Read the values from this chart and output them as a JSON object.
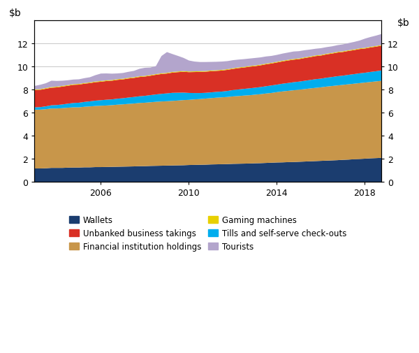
{
  "ylim": [
    0,
    14
  ],
  "yticks": [
    0,
    2,
    4,
    6,
    8,
    10,
    12
  ],
  "colors": {
    "wallets": "#1b3d6f",
    "financial": "#c8964a",
    "tills": "#00adee",
    "unbanked": "#d93025",
    "gaming": "#e8d000",
    "tourists": "#b3a5cc"
  },
  "legend": [
    {
      "label": "Wallets",
      "color": "#1b3d6f"
    },
    {
      "label": "Unbanked business takings",
      "color": "#d93025"
    },
    {
      "label": "Financial institution holdings",
      "color": "#c8964a"
    },
    {
      "label": "Gaming machines",
      "color": "#e8d000"
    },
    {
      "label": "Tills and self-serve check-outs",
      "color": "#00adee"
    },
    {
      "label": "Tourists",
      "color": "#b3a5cc"
    }
  ],
  "dates": [
    2003.0,
    2003.25,
    2003.5,
    2003.75,
    2004.0,
    2004.25,
    2004.5,
    2004.75,
    2005.0,
    2005.25,
    2005.5,
    2005.75,
    2006.0,
    2006.25,
    2006.5,
    2006.75,
    2007.0,
    2007.25,
    2007.5,
    2007.75,
    2008.0,
    2008.25,
    2008.5,
    2008.75,
    2009.0,
    2009.25,
    2009.5,
    2009.75,
    2010.0,
    2010.25,
    2010.5,
    2010.75,
    2011.0,
    2011.25,
    2011.5,
    2011.75,
    2012.0,
    2012.25,
    2012.5,
    2012.75,
    2013.0,
    2013.25,
    2013.5,
    2013.75,
    2014.0,
    2014.25,
    2014.5,
    2014.75,
    2015.0,
    2015.25,
    2015.5,
    2015.75,
    2016.0,
    2016.25,
    2016.5,
    2016.75,
    2017.0,
    2017.25,
    2017.5,
    2017.75,
    2018.0,
    2018.25,
    2018.5,
    2018.75
  ],
  "wallets": [
    1.2,
    1.2,
    1.22,
    1.25,
    1.25,
    1.25,
    1.27,
    1.28,
    1.28,
    1.3,
    1.3,
    1.32,
    1.32,
    1.33,
    1.34,
    1.35,
    1.36,
    1.37,
    1.38,
    1.4,
    1.4,
    1.42,
    1.43,
    1.44,
    1.45,
    1.46,
    1.47,
    1.48,
    1.5,
    1.51,
    1.52,
    1.53,
    1.55,
    1.56,
    1.57,
    1.58,
    1.6,
    1.61,
    1.62,
    1.63,
    1.65,
    1.66,
    1.68,
    1.7,
    1.72,
    1.73,
    1.75,
    1.76,
    1.78,
    1.8,
    1.82,
    1.84,
    1.86,
    1.88,
    1.9,
    1.92,
    1.95,
    1.97,
    2.0,
    2.02,
    2.05,
    2.08,
    2.1,
    2.12
  ],
  "financial": [
    5.1,
    5.1,
    5.12,
    5.15,
    5.15,
    5.18,
    5.2,
    5.22,
    5.22,
    5.25,
    5.28,
    5.3,
    5.32,
    5.33,
    5.35,
    5.38,
    5.4,
    5.43,
    5.45,
    5.48,
    5.5,
    5.52,
    5.55,
    5.57,
    5.58,
    5.6,
    5.62,
    5.65,
    5.65,
    5.68,
    5.7,
    5.73,
    5.75,
    5.78,
    5.8,
    5.82,
    5.85,
    5.87,
    5.9,
    5.92,
    5.95,
    5.98,
    6.02,
    6.05,
    6.1,
    6.15,
    6.18,
    6.22,
    6.25,
    6.28,
    6.32,
    6.35,
    6.38,
    6.42,
    6.45,
    6.48,
    6.5,
    6.53,
    6.55,
    6.58,
    6.6,
    6.62,
    6.65,
    6.68
  ],
  "tills": [
    0.2,
    0.22,
    0.25,
    0.28,
    0.3,
    0.32,
    0.35,
    0.38,
    0.4,
    0.42,
    0.44,
    0.46,
    0.48,
    0.5,
    0.5,
    0.52,
    0.53,
    0.55,
    0.57,
    0.58,
    0.6,
    0.62,
    0.64,
    0.66,
    0.68,
    0.7,
    0.68,
    0.65,
    0.6,
    0.55,
    0.52,
    0.5,
    0.5,
    0.5,
    0.5,
    0.52,
    0.55,
    0.57,
    0.58,
    0.6,
    0.6,
    0.62,
    0.63,
    0.65,
    0.65,
    0.67,
    0.68,
    0.7,
    0.7,
    0.72,
    0.73,
    0.75,
    0.75,
    0.77,
    0.78,
    0.8,
    0.8,
    0.82,
    0.83,
    0.85,
    0.85,
    0.87,
    0.88,
    0.9
  ],
  "unbanked": [
    1.5,
    1.5,
    1.52,
    1.52,
    1.53,
    1.55,
    1.55,
    1.57,
    1.57,
    1.58,
    1.58,
    1.6,
    1.6,
    1.62,
    1.62,
    1.63,
    1.63,
    1.65,
    1.65,
    1.67,
    1.67,
    1.68,
    1.7,
    1.72,
    1.72,
    1.75,
    1.78,
    1.8,
    1.8,
    1.82,
    1.83,
    1.83,
    1.83,
    1.82,
    1.82,
    1.83,
    1.83,
    1.85,
    1.85,
    1.87,
    1.87,
    1.88,
    1.9,
    1.9,
    1.92,
    1.93,
    1.95,
    1.95,
    1.95,
    1.97,
    1.98,
    2.0,
    2.0,
    2.02,
    2.03,
    2.05,
    2.05,
    2.07,
    2.08,
    2.1,
    2.1,
    2.12,
    2.13,
    2.15
  ],
  "gaming": [
    0.06,
    0.06,
    0.06,
    0.06,
    0.06,
    0.06,
    0.06,
    0.06,
    0.06,
    0.06,
    0.06,
    0.06,
    0.06,
    0.06,
    0.06,
    0.06,
    0.06,
    0.06,
    0.06,
    0.06,
    0.06,
    0.06,
    0.06,
    0.06,
    0.06,
    0.06,
    0.06,
    0.06,
    0.06,
    0.06,
    0.06,
    0.06,
    0.06,
    0.06,
    0.06,
    0.06,
    0.06,
    0.06,
    0.06,
    0.06,
    0.06,
    0.06,
    0.06,
    0.06,
    0.06,
    0.06,
    0.06,
    0.06,
    0.06,
    0.06,
    0.06,
    0.06,
    0.06,
    0.06,
    0.06,
    0.06,
    0.06,
    0.06,
    0.06,
    0.06,
    0.06,
    0.06,
    0.06,
    0.06
  ],
  "tourists": [
    0.3,
    0.38,
    0.42,
    0.55,
    0.5,
    0.45,
    0.42,
    0.4,
    0.4,
    0.42,
    0.45,
    0.55,
    0.65,
    0.6,
    0.55,
    0.5,
    0.5,
    0.52,
    0.55,
    0.65,
    0.7,
    0.65,
    0.7,
    1.5,
    1.8,
    1.55,
    1.35,
    1.15,
    0.95,
    0.85,
    0.8,
    0.78,
    0.75,
    0.73,
    0.72,
    0.7,
    0.7,
    0.68,
    0.67,
    0.65,
    0.65,
    0.63,
    0.62,
    0.6,
    0.6,
    0.62,
    0.63,
    0.65,
    0.63,
    0.62,
    0.6,
    0.58,
    0.58,
    0.57,
    0.57,
    0.58,
    0.6,
    0.62,
    0.65,
    0.68,
    0.8,
    0.85,
    0.9,
    0.95
  ],
  "xticks": [
    2006,
    2010,
    2014,
    2018
  ],
  "grid_color": "#c8c8c8"
}
